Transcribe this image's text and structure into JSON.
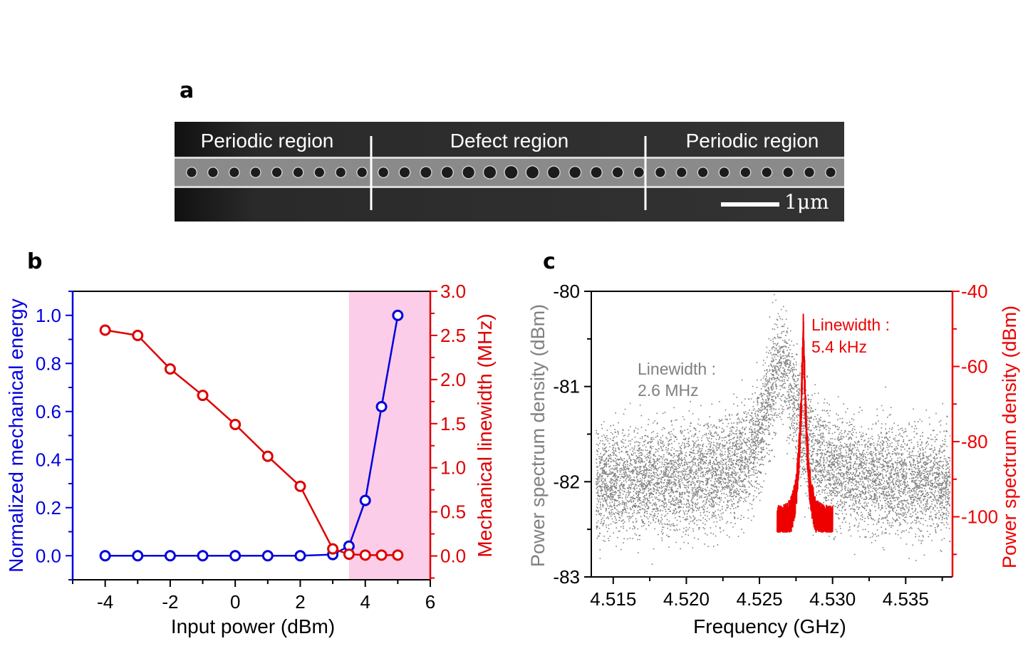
{
  "panels": {
    "a": {
      "label": "a",
      "regions": [
        "Periodic region",
        "Defect region",
        "Periodic region"
      ],
      "scale_bar": "1μm",
      "hole_count": 31
    },
    "b": {
      "label": "b"
    },
    "c": {
      "label": "c"
    }
  },
  "chart_data": [
    {
      "id": "b",
      "type": "line",
      "xlabel": "Input power (dBm)",
      "xlim": [
        -5,
        6
      ],
      "xticks": [
        -4,
        -2,
        0,
        2,
        4,
        6
      ],
      "ylabel_left": "Normalized mechanical energy",
      "ylim_left": [
        -0.1,
        1.1
      ],
      "yticks_left": [
        0.0,
        0.2,
        0.4,
        0.6,
        0.8,
        1.0
      ],
      "ylabel_right": "Mechanical linewidth (MHz)",
      "ylim_right": [
        -0.27,
        3.0
      ],
      "yticks_right": [
        0.0,
        0.5,
        1.0,
        1.5,
        2.0,
        2.5,
        3.0
      ],
      "highlight_region": [
        3.5,
        6
      ],
      "colors": {
        "left": "#0000dd",
        "right": "#dd0000",
        "highlight": "#fccde8"
      },
      "series": [
        {
          "name": "Normalized mechanical energy",
          "axis": "left",
          "color": "#0000dd",
          "x": [
            -4,
            -3,
            -2,
            -1,
            0,
            1,
            2,
            3,
            3.5,
            4,
            4.5,
            5
          ],
          "y": [
            0.0,
            0.0,
            0.0,
            0.0,
            0.0,
            0.0,
            0.0,
            0.005,
            0.04,
            0.23,
            0.62,
            1.0
          ]
        },
        {
          "name": "Mechanical linewidth",
          "axis": "right",
          "color": "#dd0000",
          "x": [
            -4,
            -3,
            -2,
            -1,
            0,
            1,
            2,
            3,
            3.5,
            4,
            4.5,
            5
          ],
          "y": [
            2.56,
            2.5,
            2.12,
            1.82,
            1.49,
            1.13,
            0.79,
            0.08,
            0.02,
            0.01,
            0.01,
            0.01
          ]
        }
      ]
    },
    {
      "id": "c",
      "type": "scatter",
      "xlabel": "Frequency (GHz)",
      "xlim": [
        4.5135,
        4.5382
      ],
      "xticks": [
        "4.515",
        "4.520",
        "4.525",
        "4.530",
        "4.535"
      ],
      "ylabel_left": "Power spectrum density (dBm)",
      "ylim_left": [
        -83,
        -80
      ],
      "yticks_left": [
        -83,
        -82,
        -81,
        -80
      ],
      "ylabel_right": "Power spectrum density (dBm)",
      "ylim_right": [
        -116,
        -40
      ],
      "yticks_right": [
        -100,
        -80,
        -60,
        -40
      ],
      "colors": {
        "left": "#808080",
        "right": "#ee0000"
      },
      "series": [
        {
          "axis": "left",
          "color": "#808080",
          "center": 4.5265,
          "linewidth_mhz": 2.6,
          "baseline": -82.0,
          "peak": -80.75
        },
        {
          "axis": "right",
          "color": "#ee0000",
          "x_range": [
            4.5262,
            4.53
          ],
          "center": 4.528,
          "peak": -47,
          "floor": -100
        }
      ],
      "annotations": [
        {
          "lines": [
            "Linewidth :",
            "2.6 MHz"
          ],
          "color": "#808080"
        },
        {
          "lines": [
            "Linewidth :",
            "5.4 kHz"
          ],
          "color": "#ee0000"
        }
      ]
    }
  ]
}
